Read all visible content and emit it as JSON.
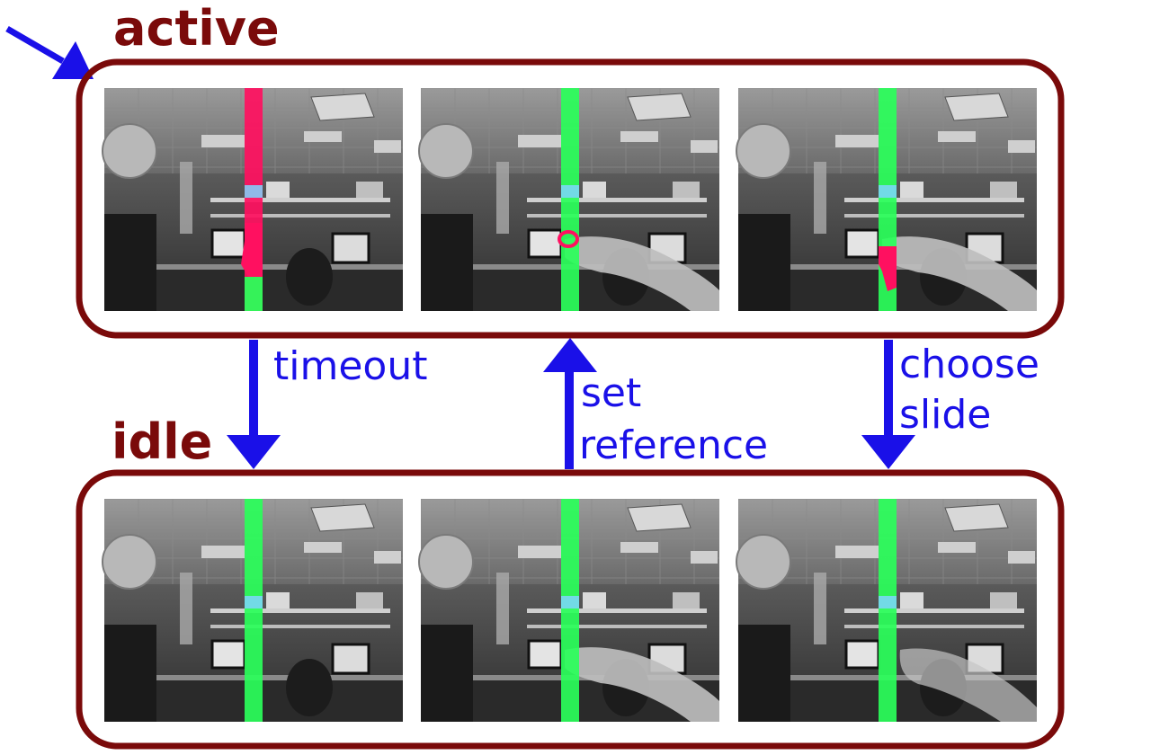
{
  "colors": {
    "state_border": "#7a0a0a",
    "state_label": "#7a0a0a",
    "transition": "#1a10e8",
    "zone_green": "#2aff5a",
    "zone_red": "#ff1060",
    "frame_bg": "#4a4a4a"
  },
  "states": {
    "active": {
      "label": "active"
    },
    "idle": {
      "label": "idle"
    }
  },
  "transitions": {
    "timeout": {
      "label": "timeout"
    },
    "set_reference": {
      "line1": "set",
      "line2": "reference"
    },
    "choose_slide": {
      "line1": "choose",
      "line2": "slide"
    }
  },
  "frames": {
    "active": [
      {
        "zone": "red",
        "hand": "none"
      },
      {
        "zone": "green",
        "hand": "pointing",
        "red_spot": "small"
      },
      {
        "zone": "green",
        "hand": "pointing",
        "red_spot": "large"
      }
    ],
    "idle": [
      {
        "zone": "green",
        "hand": "none"
      },
      {
        "zone": "green",
        "hand": "pointing"
      },
      {
        "zone": "green",
        "hand": "blurred"
      }
    ]
  },
  "icons": {
    "entry_arrow": "arrow-icon",
    "hand": "hand-icon",
    "chair": "chair-icon",
    "monitor": "monitor-icon",
    "fan": "fan-icon"
  }
}
